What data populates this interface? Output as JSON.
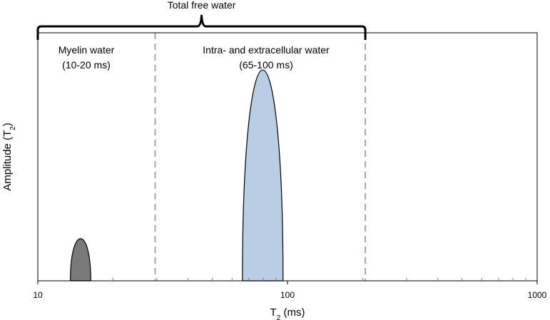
{
  "chart_data": {
    "type": "area",
    "x_scale": "log",
    "xlim": [
      10,
      1000
    ],
    "ylim": [
      0,
      1
    ],
    "xlabel": {
      "main": "T",
      "sub": "2",
      "rest": " (ms)"
    },
    "ylabel": {
      "main": "Amplitude (T",
      "sub": "2",
      "rest": ")"
    },
    "x_ticks": [
      {
        "value": 10,
        "label": "10"
      },
      {
        "value": 100,
        "label": "100"
      },
      {
        "value": 1000,
        "label": "1000"
      }
    ],
    "grid": false,
    "series": [
      {
        "x_range": [
          13.5,
          16.3
        ],
        "peak_x": 15,
        "peak_y": 0.17,
        "color": "#7a7a7a"
      },
      {
        "x_range": [
          66,
          96
        ],
        "peak_x": 80,
        "peak_y": 0.85,
        "color": "#b9cde5"
      }
    ],
    "dividers": [
      29.5,
      205
    ],
    "annotations": [
      {
        "line1": "Myelin water",
        "line2": "(10-20 ms)"
      },
      {
        "line1": "Intra- and extracellular water",
        "line2": "(65-100 ms)"
      }
    ],
    "bracket": {
      "label": "Total free water",
      "x_range": [
        10,
        205
      ]
    }
  }
}
